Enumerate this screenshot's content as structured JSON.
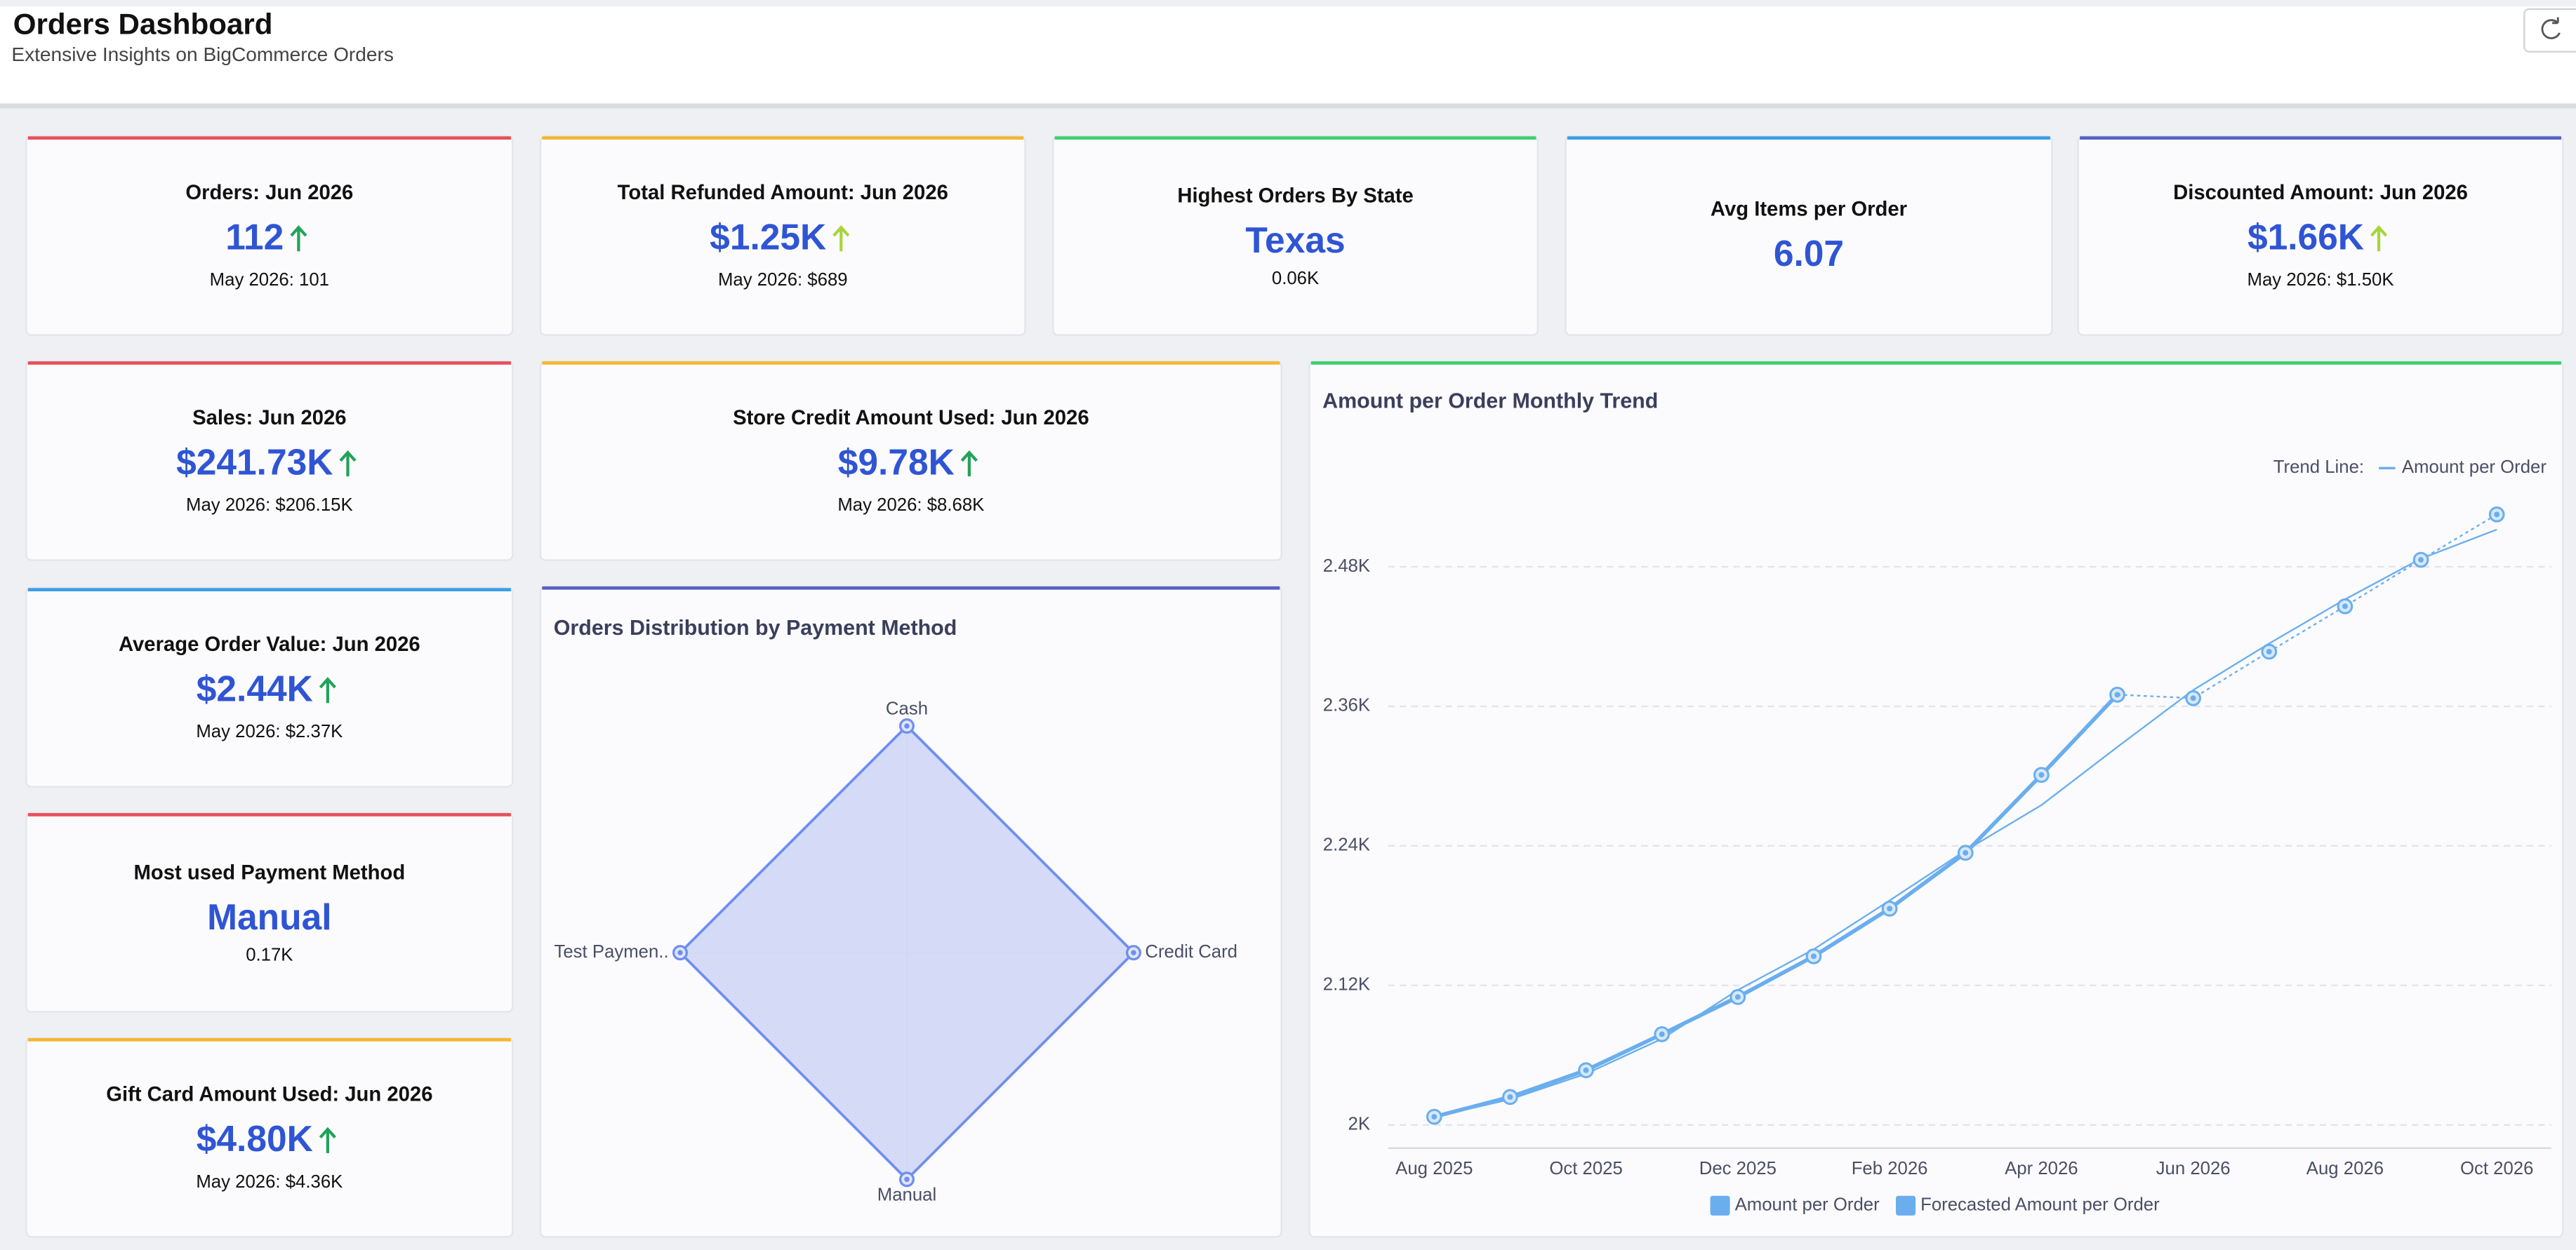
{
  "header": {
    "title": "Orders Dashboard",
    "subtitle": "Extensive Insights on BigCommerce Orders"
  },
  "kpis": [
    {
      "title": "Orders: Jun 2026",
      "value": "112",
      "comparison": "May 2026: 101"
    },
    {
      "title": "Total Refunded Amount: Jun 2026",
      "value": "$1.25K",
      "comparison": "May 2026: $689"
    },
    {
      "title": "Highest Orders By State",
      "value": "Texas",
      "detail": "0.06K"
    },
    {
      "title": "Avg Items per Order",
      "value": "6.07"
    },
    {
      "title": "Discounted Amount: Jun 2026",
      "value": "$1.66K",
      "comparison": "May 2026: $1.50K"
    },
    {
      "title": "Sales: Jun 2026",
      "value": "$241.73K",
      "comparison": "May 2026: $206.15K"
    },
    {
      "title": "Store Credit Amount Used: Jun 2026",
      "value": "$9.78K",
      "comparison": "May 2026: $8.68K"
    },
    {
      "title": "Average Order Value: Jun 2026",
      "value": "$2.44K",
      "comparison": "May 2026: $2.37K"
    },
    {
      "title": "Most used Payment Method",
      "value": "Manual",
      "detail": "0.17K"
    },
    {
      "title": "Gift Card Amount Used: Jun 2026",
      "value": "$4.80K",
      "comparison": "May 2026: $4.36K"
    }
  ],
  "chart_data": [
    {
      "type": "radar",
      "title": "Orders Distribution by Payment Method",
      "categories": [
        "Cash",
        "Credit Card",
        "Manual",
        "Test Paymen.."
      ],
      "values": [
        170,
        170,
        170,
        170
      ],
      "rlim": [
        0,
        170
      ],
      "color": "#6f8ef0",
      "fill": "#d3d9f5"
    },
    {
      "type": "line",
      "title": "Amount per Order Monthly Trend",
      "categories": [
        "Aug 2025",
        null,
        "Oct 2025",
        null,
        "Dec 2025",
        null,
        "Feb 2026",
        null,
        "Apr 2026",
        null,
        "Jun 2026",
        null,
        "Aug 2026",
        null,
        "Oct 2026"
      ],
      "series": [
        {
          "name": "Amount per Order",
          "color": "#6aaeee",
          "values": [
            2007,
            2024,
            2047,
            2078,
            2110,
            2145,
            2186,
            2234,
            2301,
            2370,
            null,
            null,
            null,
            null,
            null
          ]
        },
        {
          "name": "Forecasted Amount per Order",
          "color": "#6aaeee",
          "values": [
            null,
            null,
            null,
            null,
            null,
            null,
            null,
            null,
            null,
            2370,
            2367,
            2407,
            2446,
            2486,
            2525
          ]
        }
      ],
      "trend": {
        "label": "Trend Line:",
        "name": "Amount per Order",
        "color": "#6aaeee",
        "values": [
          2007,
          2022,
          2044,
          2074,
          2116,
          2151,
          2193,
          2236,
          2275,
          2325,
          2374,
          2414,
          2452,
          2487,
          2512
        ]
      },
      "ylim": [
        1980,
        2550
      ],
      "yticks": [
        {
          "value": 2000,
          "label": "2K"
        },
        {
          "value": 2120,
          "label": "2.12K"
        },
        {
          "value": 2240,
          "label": "2.24K"
        },
        {
          "value": 2360,
          "label": "2.36K"
        },
        {
          "value": 2480,
          "label": "2.48K"
        }
      ],
      "grid": true
    }
  ]
}
